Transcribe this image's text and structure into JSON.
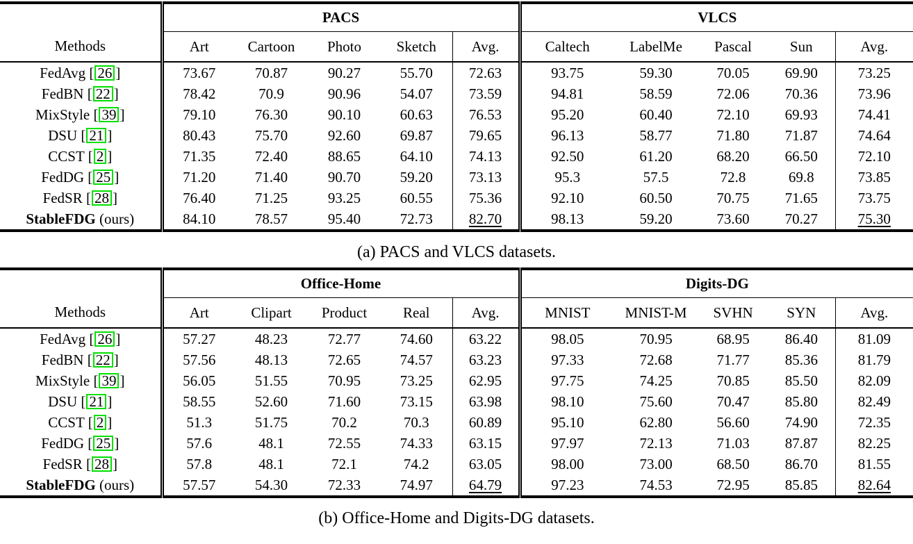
{
  "page": {
    "background": "#ffffff",
    "text_color": "#000000"
  },
  "citation_style": {
    "border_color": "#00e000"
  },
  "tables": [
    {
      "caption": "(a) PACS and VLCS datasets.",
      "header": {
        "methods_label": "Methods",
        "groups": [
          {
            "title": "PACS",
            "columns": [
              "Art",
              "Cartoon",
              "Photo",
              "Sketch"
            ],
            "avg_label": "Avg."
          },
          {
            "title": "VLCS",
            "columns": [
              "Caltech",
              "LabelMe",
              "Pascal",
              "Sun"
            ],
            "avg_label": "Avg."
          }
        ]
      },
      "rows": [
        {
          "method": "FedAvg",
          "citation": "26",
          "suffix": "",
          "ours": false,
          "best_avg": false,
          "values": [
            "73.67",
            "70.87",
            "90.27",
            "55.70",
            "72.63",
            "93.75",
            "59.30",
            "70.05",
            "69.90",
            "73.25"
          ]
        },
        {
          "method": "FedBN",
          "citation": "22",
          "suffix": "",
          "ours": false,
          "best_avg": false,
          "values": [
            "78.42",
            "70.9",
            "90.96",
            "54.07",
            "73.59",
            "94.81",
            "58.59",
            "72.06",
            "70.36",
            "73.96"
          ]
        },
        {
          "method": "MixStyle",
          "citation": "39",
          "suffix": "",
          "ours": false,
          "best_avg": false,
          "values": [
            "79.10",
            "76.30",
            "90.10",
            "60.63",
            "76.53",
            "95.20",
            "60.40",
            "72.10",
            "69.93",
            "74.41"
          ]
        },
        {
          "method": "DSU",
          "citation": "21",
          "suffix": "",
          "ours": false,
          "best_avg": false,
          "values": [
            "80.43",
            "75.70",
            "92.60",
            "69.87",
            "79.65",
            "96.13",
            "58.77",
            "71.80",
            "71.87",
            "74.64"
          ]
        },
        {
          "method": "CCST",
          "citation": "2",
          "suffix": "",
          "ours": false,
          "best_avg": false,
          "values": [
            "71.35",
            "72.40",
            "88.65",
            "64.10",
            "74.13",
            "92.50",
            "61.20",
            "68.20",
            "66.50",
            "72.10"
          ]
        },
        {
          "method": "FedDG",
          "citation": "25",
          "suffix": "",
          "ours": false,
          "best_avg": false,
          "values": [
            "71.20",
            "71.40",
            "90.70",
            "59.20",
            "73.13",
            "95.3",
            "57.5",
            "72.8",
            "69.8",
            "73.85"
          ]
        },
        {
          "method": "FedSR",
          "citation": "28",
          "suffix": "",
          "ours": false,
          "best_avg": false,
          "values": [
            "76.40",
            "71.25",
            "93.25",
            "60.55",
            "75.36",
            "92.10",
            "60.50",
            "70.75",
            "71.65",
            "73.75"
          ]
        },
        {
          "method": "StableFDG",
          "citation": "",
          "suffix": " (ours)",
          "ours": true,
          "best_avg": true,
          "values": [
            "84.10",
            "78.57",
            "95.40",
            "72.73",
            "82.70",
            "98.13",
            "59.20",
            "73.60",
            "70.27",
            "75.30"
          ]
        }
      ]
    },
    {
      "caption": "(b) Office-Home and Digits-DG datasets.",
      "header": {
        "methods_label": "Methods",
        "groups": [
          {
            "title": "Office-Home",
            "columns": [
              "Art",
              "Clipart",
              "Product",
              "Real"
            ],
            "avg_label": "Avg."
          },
          {
            "title": "Digits-DG",
            "columns": [
              "MNIST",
              "MNIST-M",
              "SVHN",
              "SYN"
            ],
            "avg_label": "Avg."
          }
        ]
      },
      "rows": [
        {
          "method": "FedAvg",
          "citation": "26",
          "suffix": "",
          "ours": false,
          "best_avg": false,
          "values": [
            "57.27",
            "48.23",
            "72.77",
            "74.60",
            "63.22",
            "98.05",
            "70.95",
            "68.95",
            "86.40",
            "81.09"
          ]
        },
        {
          "method": "FedBN",
          "citation": "22",
          "suffix": "",
          "ours": false,
          "best_avg": false,
          "values": [
            "57.56",
            "48.13",
            "72.65",
            "74.57",
            "63.23",
            "97.33",
            "72.68",
            "71.77",
            "85.36",
            "81.79"
          ]
        },
        {
          "method": "MixStyle",
          "citation": "39",
          "suffix": "",
          "ours": false,
          "best_avg": false,
          "values": [
            "56.05",
            "51.55",
            "70.95",
            "73.25",
            "62.95",
            "97.75",
            "74.25",
            "70.85",
            "85.50",
            "82.09"
          ]
        },
        {
          "method": "DSU",
          "citation": "21",
          "suffix": "",
          "ours": false,
          "best_avg": false,
          "values": [
            "58.55",
            "52.60",
            "71.60",
            "73.15",
            "63.98",
            "98.10",
            "75.60",
            "70.47",
            "85.80",
            "82.49"
          ]
        },
        {
          "method": "CCST",
          "citation": "2",
          "suffix": "",
          "ours": false,
          "best_avg": false,
          "values": [
            "51.3",
            "51.75",
            "70.2",
            "70.3",
            "60.89",
            "95.10",
            "62.80",
            "56.60",
            "74.90",
            "72.35"
          ]
        },
        {
          "method": "FedDG",
          "citation": "25",
          "suffix": "",
          "ours": false,
          "best_avg": false,
          "values": [
            "57.6",
            "48.1",
            "72.55",
            "74.33",
            "63.15",
            "97.97",
            "72.13",
            "71.03",
            "87.87",
            "82.25"
          ]
        },
        {
          "method": "FedSR",
          "citation": "28",
          "suffix": "",
          "ours": false,
          "best_avg": false,
          "values": [
            "57.8",
            "48.1",
            "72.1",
            "74.2",
            "63.05",
            "98.00",
            "73.00",
            "68.50",
            "86.70",
            "81.55"
          ]
        },
        {
          "method": "StableFDG",
          "citation": "",
          "suffix": " (ours)",
          "ours": true,
          "best_avg": true,
          "values": [
            "57.57",
            "54.30",
            "72.33",
            "74.97",
            "64.79",
            "97.23",
            "74.53",
            "72.95",
            "85.85",
            "82.64"
          ]
        }
      ]
    }
  ]
}
